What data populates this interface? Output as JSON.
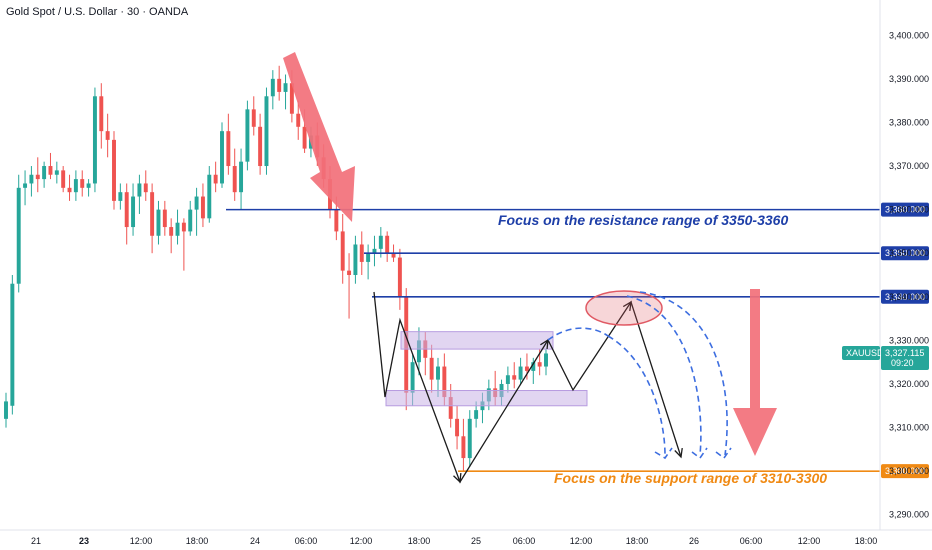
{
  "chart_title": "Gold Spot / U.S. Dollar · 30 · OANDA",
  "colors": {
    "up": "#26a69a",
    "down": "#ef5350",
    "resistance": "#1e3fa8",
    "support": "#f08a14",
    "box": "#c9b3e6",
    "dashed": "#3d6ee0",
    "arrow_red": "#f2707a",
    "ellipse": "#e05a64"
  },
  "chart_data": {
    "type": "candlestick",
    "title": "Gold Spot / U.S. Dollar · 30 · OANDA",
    "y_axis": {
      "ticks": [
        "3,400.000",
        "3,390.000",
        "3,380.000",
        "3,370.000",
        "3,360.000",
        "3,350.000",
        "3,340.000",
        "3,330.000",
        "3,320.000",
        "3,310.000",
        "3,300.000",
        "3,290.000"
      ],
      "range": [
        3286.5,
        3403.5
      ]
    },
    "x_axis": {
      "ticks": [
        {
          "label": "21",
          "bold": false
        },
        {
          "label": "23",
          "bold": true
        },
        {
          "label": "12:00",
          "bold": false
        },
        {
          "label": "18:00",
          "bold": false
        },
        {
          "label": "24",
          "bold": false
        },
        {
          "label": "06:00",
          "bold": false
        },
        {
          "label": "12:00",
          "bold": false
        },
        {
          "label": "18:00",
          "bold": false
        },
        {
          "label": "25",
          "bold": false
        },
        {
          "label": "06:00",
          "bold": false
        },
        {
          "label": "12:00",
          "bold": false
        },
        {
          "label": "18:00",
          "bold": false
        },
        {
          "label": "26",
          "bold": false
        },
        {
          "label": "06:00",
          "bold": false
        },
        {
          "label": "12:00",
          "bold": false
        },
        {
          "label": "18:00",
          "bold": false
        }
      ]
    },
    "levels": [
      {
        "price": 3360,
        "label": "3,360.000",
        "kind": "resistance"
      },
      {
        "price": 3350,
        "label": "3,350.000",
        "kind": "resistance"
      },
      {
        "price": 3340,
        "label": "3,340.000",
        "kind": "resistance"
      },
      {
        "price": 3300,
        "label": "3,300.000",
        "kind": "support"
      }
    ],
    "current": {
      "symbol": "XAUUSD",
      "price": "3,327.115",
      "timer": "09:20",
      "value": 3327.115
    },
    "annotations": [
      {
        "text": "Focus on the resistance range of 3350-3360",
        "kind": "resistance"
      },
      {
        "text": "Focus on the support range of 3310-3300",
        "kind": "support"
      }
    ],
    "candles": [
      [
        3312.0,
        3318.0,
        3310.0,
        3316.0
      ],
      [
        3315.0,
        3345.0,
        3313.0,
        3343.0
      ],
      [
        3343.0,
        3368.0,
        3341.0,
        3365.0
      ],
      [
        3365.0,
        3369.0,
        3361.0,
        3366.0
      ],
      [
        3366.0,
        3370.0,
        3363.0,
        3368.0
      ],
      [
        3368.0,
        3372.0,
        3364.0,
        3367.0
      ],
      [
        3367.0,
        3371.0,
        3365.0,
        3370.0
      ],
      [
        3370.0,
        3373.0,
        3367.0,
        3368.0
      ],
      [
        3368.0,
        3371.0,
        3366.0,
        3369.0
      ],
      [
        3369.0,
        3370.0,
        3364.0,
        3365.0
      ],
      [
        3365.0,
        3368.0,
        3362.0,
        3364.0
      ],
      [
        3364.0,
        3369.0,
        3362.0,
        3367.0
      ],
      [
        3367.0,
        3369.0,
        3363.0,
        3365.0
      ],
      [
        3365.0,
        3367.0,
        3363.0,
        3366.0
      ],
      [
        3366.0,
        3388.0,
        3364.0,
        3386.0
      ],
      [
        3386.0,
        3389.0,
        3374.0,
        3378.0
      ],
      [
        3378.0,
        3382.0,
        3372.0,
        3376.0
      ],
      [
        3376.0,
        3378.0,
        3360.0,
        3362.0
      ],
      [
        3362.0,
        3366.0,
        3360.0,
        3364.0
      ],
      [
        3364.0,
        3366.0,
        3352.0,
        3356.0
      ],
      [
        3356.0,
        3366.0,
        3354.0,
        3363.0
      ],
      [
        3363.0,
        3368.0,
        3359.0,
        3366.0
      ],
      [
        3366.0,
        3369.0,
        3362.0,
        3364.0
      ],
      [
        3364.0,
        3366.0,
        3350.0,
        3354.0
      ],
      [
        3354.0,
        3362.0,
        3352.0,
        3360.0
      ],
      [
        3360.0,
        3362.0,
        3354.0,
        3356.0
      ],
      [
        3356.0,
        3358.0,
        3350.0,
        3354.0
      ],
      [
        3354.0,
        3360.0,
        3352.0,
        3357.0
      ],
      [
        3357.0,
        3358.0,
        3346.0,
        3355.0
      ],
      [
        3355.0,
        3362.0,
        3354.0,
        3360.0
      ],
      [
        3360.0,
        3365.0,
        3354.0,
        3363.0
      ],
      [
        3363.0,
        3366.0,
        3356.0,
        3358.0
      ],
      [
        3358.0,
        3370.0,
        3357.0,
        3368.0
      ],
      [
        3368.0,
        3371.0,
        3364.0,
        3366.0
      ],
      [
        3366.0,
        3380.0,
        3365.0,
        3378.0
      ],
      [
        3378.0,
        3382.0,
        3368.0,
        3370.0
      ],
      [
        3370.0,
        3374.0,
        3362.0,
        3364.0
      ],
      [
        3364.0,
        3374.0,
        3360.0,
        3371.0
      ],
      [
        3371.0,
        3385.0,
        3369.0,
        3383.0
      ],
      [
        3383.0,
        3386.0,
        3377.0,
        3379.0
      ],
      [
        3379.0,
        3382.0,
        3368.0,
        3370.0
      ],
      [
        3370.0,
        3388.0,
        3368.0,
        3386.0
      ],
      [
        3386.0,
        3392.0,
        3383.0,
        3390.0
      ],
      [
        3390.0,
        3393.0,
        3385.0,
        3387.0
      ],
      [
        3387.0,
        3391.0,
        3383.0,
        3389.0
      ],
      [
        3389.0,
        3392.0,
        3380.0,
        3382.0
      ],
      [
        3382.0,
        3385.0,
        3376.0,
        3379.0
      ],
      [
        3379.0,
        3383.0,
        3373.0,
        3374.0
      ],
      [
        3374.0,
        3379.0,
        3372.0,
        3377.0
      ],
      [
        3377.0,
        3380.0,
        3370.0,
        3372.0
      ],
      [
        3372.0,
        3375.0,
        3365.0,
        3367.0
      ],
      [
        3367.0,
        3370.0,
        3358.0,
        3360.0
      ],
      [
        3360.0,
        3363.0,
        3353.0,
        3355.0
      ],
      [
        3355.0,
        3359.0,
        3343.0,
        3346.0
      ],
      [
        3346.0,
        3350.0,
        3335.0,
        3345.0
      ],
      [
        3345.0,
        3354.0,
        3343.0,
        3352.0
      ],
      [
        3352.0,
        3355.0,
        3345.0,
        3348.0
      ],
      [
        3348.0,
        3352.0,
        3344.0,
        3350.0
      ],
      [
        3350.0,
        3354.0,
        3347.0,
        3351.0
      ],
      [
        3351.0,
        3356.0,
        3349.0,
        3354.0
      ],
      [
        3354.0,
        3355.0,
        3348.0,
        3350.0
      ],
      [
        3350.0,
        3352.0,
        3348.0,
        3349.0
      ],
      [
        3349.0,
        3351.0,
        3337.0,
        3340.0
      ],
      [
        3340.0,
        3342.0,
        3314.0,
        3318.0
      ],
      [
        3318.0,
        3327.0,
        3315.0,
        3325.0
      ],
      [
        3325.0,
        3333.0,
        3322.0,
        3330.0
      ],
      [
        3330.0,
        3332.0,
        3322.0,
        3326.0
      ],
      [
        3326.0,
        3329.0,
        3318.0,
        3321.0
      ],
      [
        3321.0,
        3326.0,
        3317.0,
        3324.0
      ],
      [
        3324.0,
        3327.0,
        3315.0,
        3317.0
      ],
      [
        3317.0,
        3320.0,
        3310.0,
        3312.0
      ],
      [
        3312.0,
        3315.0,
        3305.0,
        3308.0
      ],
      [
        3308.0,
        3312.0,
        3300.0,
        3303.0
      ],
      [
        3303.0,
        3314.0,
        3301.0,
        3312.0
      ],
      [
        3312.0,
        3316.0,
        3310.0,
        3314.0
      ],
      [
        3314.0,
        3318.0,
        3311.0,
        3316.0
      ],
      [
        3316.0,
        3321.0,
        3314.0,
        3319.0
      ],
      [
        3319.0,
        3323.0,
        3315.0,
        3317.0
      ],
      [
        3317.0,
        3321.0,
        3315.0,
        3320.0
      ],
      [
        3320.0,
        3324.0,
        3318.0,
        3322.0
      ],
      [
        3322.0,
        3325.0,
        3319.0,
        3321.0
      ],
      [
        3321.0,
        3326.0,
        3320.0,
        3324.0
      ],
      [
        3324.0,
        3327.0,
        3321.0,
        3323.0
      ],
      [
        3323.0,
        3326.0,
        3320.0,
        3325.0
      ],
      [
        3325.0,
        3328.0,
        3322.0,
        3324.0
      ],
      [
        3324.0,
        3328.0,
        3322.0,
        3327.0
      ]
    ]
  }
}
